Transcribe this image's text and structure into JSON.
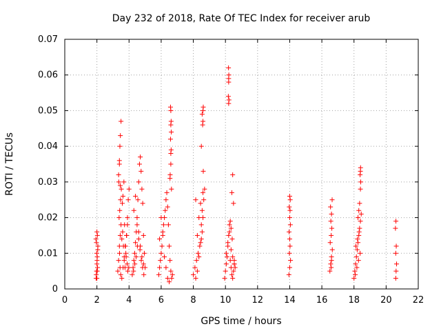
{
  "chart_data": {
    "type": "scatter",
    "title": "Day 232 of 2018, Rate Of TEC Index for receiver arub",
    "xlabel": "GPS time / hours",
    "ylabel": "ROTI / TECUs",
    "xlim": [
      0,
      22
    ],
    "ylim": [
      0,
      0.07
    ],
    "xticks": [
      "0",
      "2",
      "4",
      "6",
      "8",
      "10",
      "12",
      "14",
      "16",
      "18",
      "20",
      "22"
    ],
    "yticks": [
      "0",
      "0.01",
      "0.02",
      "0.03",
      "0.04",
      "0.05",
      "0.06",
      "0.07"
    ],
    "grid": true,
    "marker": "+",
    "marker_color": "#ff0000",
    "series": [
      {
        "x": [
          1.95,
          1.98,
          2.0,
          2.02,
          2.05,
          1.97,
          2.03,
          2.0,
          1.96,
          2.04,
          2.01,
          1.99,
          2.06,
          1.94,
          2.02,
          2.0,
          3.3,
          3.35,
          3.4,
          3.45,
          3.5,
          3.38,
          3.42,
          3.47,
          3.52,
          3.36,
          3.44,
          3.41,
          3.55,
          3.6,
          3.65,
          3.7,
          3.75,
          3.8,
          3.85,
          3.9,
          3.95,
          4.0,
          3.4,
          3.43,
          3.46,
          3.5,
          3.58,
          3.62,
          3.68,
          3.72,
          3.78,
          3.82,
          3.88,
          3.92,
          3.48,
          3.55,
          3.63,
          3.7,
          3.76,
          3.84,
          3.9,
          3.98,
          3.35,
          3.4,
          3.45,
          4.2,
          4.25,
          4.3,
          4.35,
          4.4,
          4.45,
          4.5,
          4.55,
          4.6,
          4.65,
          4.7,
          4.75,
          4.8,
          4.85,
          4.9,
          4.95,
          5.0,
          4.28,
          4.36,
          4.44,
          4.52,
          4.6,
          4.68,
          4.76,
          4.84,
          4.92,
          4.3,
          4.4,
          4.5,
          4.6,
          4.7,
          4.8,
          4.9,
          5.85,
          5.9,
          5.95,
          6.0,
          6.05,
          6.1,
          6.15,
          6.2,
          6.25,
          6.3,
          6.35,
          6.4,
          6.45,
          6.5,
          6.55,
          6.6,
          6.65,
          6.7,
          5.9,
          6.0,
          6.1,
          6.2,
          6.3,
          6.4,
          6.5,
          6.55,
          6.6,
          6.62,
          6.58,
          6.6,
          6.62,
          6.6,
          6.58,
          6.63,
          6.56,
          6.6,
          6.64,
          8.0,
          8.1,
          8.2,
          8.3,
          8.4,
          8.5,
          8.55,
          8.6,
          8.65,
          8.7,
          8.15,
          8.25,
          8.35,
          8.45,
          8.5,
          8.55,
          8.6,
          8.62,
          8.58,
          8.6,
          8.55,
          8.6,
          8.62,
          8.15,
          8.45,
          8.35,
          8.25,
          8.5,
          9.95,
          10.0,
          10.05,
          10.1,
          10.15,
          10.2,
          10.25,
          10.3,
          10.35,
          10.4,
          10.45,
          10.5,
          10.55,
          10.6,
          10.05,
          10.15,
          10.25,
          10.35,
          10.45,
          10.55,
          10.2,
          10.22,
          10.18,
          10.2,
          10.21,
          10.19,
          10.2,
          10.4,
          10.5,
          10.45,
          10.3,
          10.35,
          10.42,
          10.55,
          13.95,
          14.0,
          14.05,
          13.98,
          14.02,
          14.0,
          13.96,
          14.04,
          14.0,
          14.02,
          13.97,
          14.03,
          14.0,
          16.5,
          16.55,
          16.6,
          16.65,
          16.52,
          16.58,
          16.62,
          16.56,
          16.6,
          16.54,
          16.64,
          16.58,
          16.6,
          18.0,
          18.05,
          18.1,
          18.15,
          18.2,
          18.25,
          18.3,
          18.35,
          18.4,
          18.45,
          18.08,
          18.18,
          18.28,
          18.38,
          18.12,
          18.22,
          18.32,
          18.4,
          18.42,
          18.38,
          18.4,
          18.41,
          18.25,
          18.35,
          18.3,
          20.6,
          20.62,
          20.65,
          20.6,
          20.63,
          20.58,
          20.61
        ],
        "y": [
          0.003,
          0.005,
          0.007,
          0.009,
          0.011,
          0.013,
          0.015,
          0.016,
          0.004,
          0.006,
          0.008,
          0.01,
          0.012,
          0.014,
          0.005,
          0.003,
          0.005,
          0.008,
          0.012,
          0.015,
          0.018,
          0.02,
          0.022,
          0.025,
          0.028,
          0.03,
          0.006,
          0.01,
          0.014,
          0.016,
          0.012,
          0.008,
          0.006,
          0.01,
          0.015,
          0.02,
          0.025,
          0.028,
          0.035,
          0.04,
          0.043,
          0.047,
          0.024,
          0.026,
          0.03,
          0.018,
          0.012,
          0.009,
          0.007,
          0.005,
          0.004,
          0.003,
          0.006,
          0.009,
          0.012,
          0.015,
          0.018,
          0.006,
          0.032,
          0.036,
          0.029,
          0.004,
          0.006,
          0.008,
          0.01,
          0.013,
          0.016,
          0.02,
          0.025,
          0.03,
          0.035,
          0.037,
          0.033,
          0.028,
          0.024,
          0.015,
          0.01,
          0.006,
          0.005,
          0.007,
          0.009,
          0.012,
          0.014,
          0.011,
          0.008,
          0.006,
          0.004,
          0.022,
          0.026,
          0.018,
          0.016,
          0.012,
          0.009,
          0.007,
          0.004,
          0.006,
          0.008,
          0.01,
          0.012,
          0.015,
          0.018,
          0.02,
          0.022,
          0.025,
          0.027,
          0.023,
          0.018,
          0.012,
          0.008,
          0.005,
          0.003,
          0.004,
          0.014,
          0.02,
          0.016,
          0.009,
          0.006,
          0.003,
          0.002,
          0.031,
          0.035,
          0.039,
          0.042,
          0.046,
          0.047,
          0.05,
          0.051,
          0.044,
          0.032,
          0.038,
          0.028,
          0.004,
          0.006,
          0.008,
          0.01,
          0.012,
          0.014,
          0.016,
          0.02,
          0.025,
          0.028,
          0.003,
          0.005,
          0.009,
          0.013,
          0.018,
          0.022,
          0.027,
          0.033,
          0.046,
          0.047,
          0.049,
          0.05,
          0.051,
          0.025,
          0.024,
          0.02,
          0.015,
          0.04,
          0.003,
          0.005,
          0.007,
          0.009,
          0.012,
          0.015,
          0.018,
          0.008,
          0.006,
          0.004,
          0.003,
          0.005,
          0.007,
          0.006,
          0.01,
          0.013,
          0.016,
          0.011,
          0.009,
          0.007,
          0.052,
          0.053,
          0.054,
          0.059,
          0.06,
          0.062,
          0.058,
          0.027,
          0.024,
          0.032,
          0.019,
          0.017,
          0.014,
          0.008,
          0.004,
          0.006,
          0.008,
          0.01,
          0.012,
          0.014,
          0.016,
          0.018,
          0.02,
          0.022,
          0.023,
          0.025,
          0.026,
          0.005,
          0.007,
          0.009,
          0.011,
          0.013,
          0.015,
          0.017,
          0.019,
          0.021,
          0.023,
          0.025,
          0.006,
          0.008,
          0.003,
          0.005,
          0.007,
          0.009,
          0.011,
          0.013,
          0.015,
          0.017,
          0.019,
          0.021,
          0.004,
          0.006,
          0.008,
          0.01,
          0.012,
          0.014,
          0.016,
          0.028,
          0.03,
          0.032,
          0.033,
          0.034,
          0.02,
          0.024,
          0.022,
          0.003,
          0.005,
          0.007,
          0.01,
          0.012,
          0.017,
          0.019
        ]
      }
    ]
  }
}
